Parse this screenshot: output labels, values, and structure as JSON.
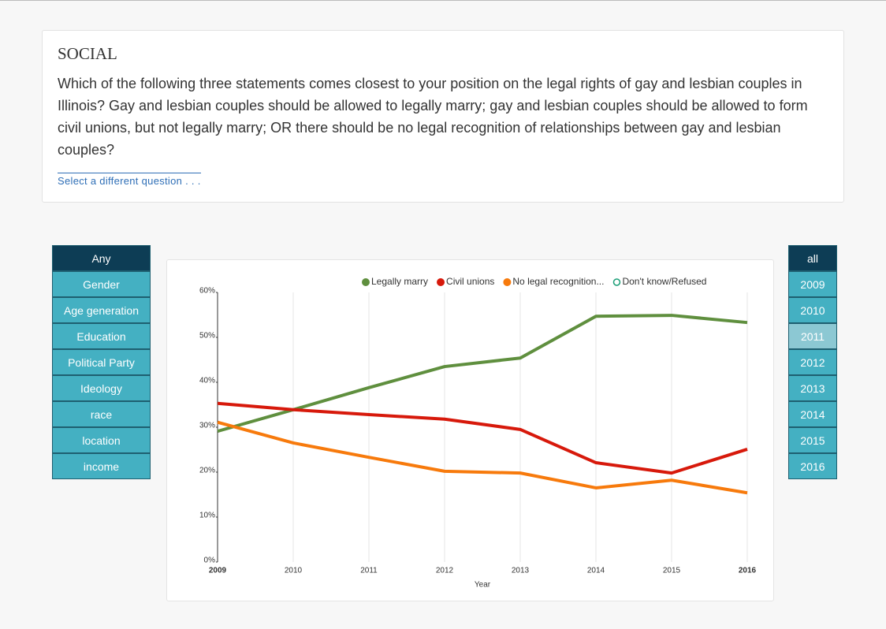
{
  "header": {
    "title": "SOCIAL",
    "question": "Which of the following three statements comes closest to your position on the legal rights of gay and lesbian couples in Illinois? Gay and lesbian couples should be allowed to legally marry; gay and lesbian couples should be allowed to form civil unions, but not legally marry; OR there should be no legal recognition of relationships between gay and lesbian couples?",
    "link": "Select a different question . . ."
  },
  "left_menu": [
    "Any",
    "Gender",
    "Age generation",
    "Education",
    "Political Party",
    "Ideology",
    "race",
    "location",
    "income"
  ],
  "right_menu": [
    "all",
    "2009",
    "2010",
    "2011",
    "2012",
    "2013",
    "2014",
    "2015",
    "2016"
  ],
  "chart_data": {
    "type": "line",
    "x_label": "Year",
    "x": [
      2009,
      2010,
      2011,
      2012,
      2013,
      2014,
      2015,
      2016
    ],
    "xlim": [
      2009,
      2016
    ],
    "xticks": [
      2009,
      2010,
      2011,
      2012,
      2013,
      2014,
      2015,
      2016
    ],
    "ylim": [
      0,
      60
    ],
    "yticks": [
      {
        "value": 0,
        "label": "0%"
      },
      {
        "value": 10,
        "label": "10%"
      },
      {
        "value": 20,
        "label": "20%"
      },
      {
        "value": 30,
        "label": "30%"
      },
      {
        "value": 40,
        "label": "40%"
      },
      {
        "value": 50,
        "label": "50%"
      },
      {
        "value": 60,
        "label": "60%"
      }
    ],
    "grid": true,
    "series": [
      {
        "name": "Legally marry",
        "color": "#5f8f3e",
        "values": [
          29.1,
          33.9,
          38.8,
          43.5,
          45.4,
          54.7,
          54.9,
          53.3
        ]
      },
      {
        "name": "Civil unions",
        "color": "#d7190b",
        "values": [
          35.3,
          33.9,
          32.8,
          31.8,
          29.5,
          22.1,
          19.8,
          25.1
        ]
      },
      {
        "name": "No legal recognition...",
        "color": "#f77a0c",
        "values": [
          31.1,
          26.5,
          23.3,
          20.2,
          19.8,
          16.5,
          18.2,
          15.4
        ]
      },
      {
        "name": "Don't know/Refused",
        "color": "#1a9e77",
        "marker": "open",
        "values": [
          null,
          null,
          null,
          null,
          null,
          null,
          null,
          null
        ]
      }
    ]
  }
}
